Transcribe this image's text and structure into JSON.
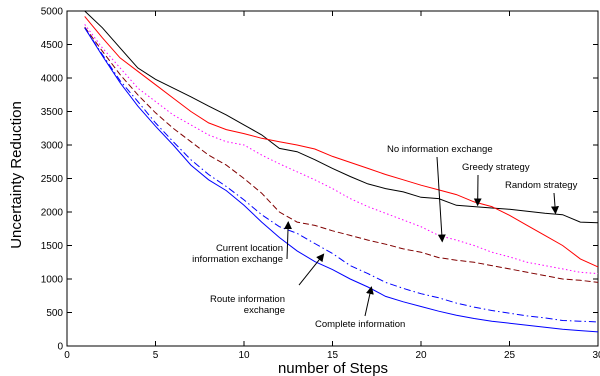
{
  "chart_data": {
    "type": "line",
    "title": "",
    "xlabel": "number of Steps",
    "ylabel": "Uncertainty Reduction",
    "xlim": [
      0,
      30
    ],
    "ylim": [
      0,
      5000
    ],
    "xticks": [
      0,
      5,
      10,
      15,
      20,
      25,
      30
    ],
    "yticks": [
      0,
      500,
      1000,
      1500,
      2000,
      2500,
      3000,
      3500,
      4000,
      4500,
      5000
    ],
    "grid": false,
    "legend": "none",
    "series": [
      {
        "color": "#000000",
        "dash": "solid",
        "points": [
          [
            1,
            5000
          ],
          [
            2,
            4750
          ],
          [
            3,
            4450
          ],
          [
            4,
            4150
          ],
          [
            5,
            3980
          ],
          [
            6,
            3850
          ],
          [
            7,
            3720
          ],
          [
            8,
            3580
          ],
          [
            9,
            3450
          ],
          [
            10,
            3300
          ],
          [
            11,
            3150
          ],
          [
            12,
            2950
          ],
          [
            13,
            2900
          ],
          [
            14,
            2780
          ],
          [
            15,
            2650
          ],
          [
            16,
            2530
          ],
          [
            17,
            2420
          ],
          [
            18,
            2350
          ],
          [
            19,
            2300
          ],
          [
            20,
            2220
          ],
          [
            21,
            2200
          ],
          [
            22,
            2100
          ],
          [
            23,
            2080
          ],
          [
            24,
            2060
          ],
          [
            25,
            2040
          ],
          [
            26,
            2010
          ],
          [
            27,
            1980
          ],
          [
            28,
            1960
          ],
          [
            29,
            1850
          ],
          [
            30,
            1840
          ]
        ]
      },
      {
        "color": "#ff0000",
        "dash": "solid",
        "points": [
          [
            1,
            4920
          ],
          [
            2,
            4600
          ],
          [
            3,
            4300
          ],
          [
            4,
            4100
          ],
          [
            5,
            3900
          ],
          [
            6,
            3700
          ],
          [
            7,
            3500
          ],
          [
            8,
            3330
          ],
          [
            9,
            3230
          ],
          [
            10,
            3170
          ],
          [
            11,
            3100
          ],
          [
            12,
            3050
          ],
          [
            13,
            3000
          ],
          [
            14,
            2940
          ],
          [
            15,
            2830
          ],
          [
            16,
            2740
          ],
          [
            17,
            2650
          ],
          [
            18,
            2560
          ],
          [
            19,
            2480
          ],
          [
            20,
            2400
          ],
          [
            21,
            2330
          ],
          [
            22,
            2260
          ],
          [
            23,
            2150
          ],
          [
            24,
            2080
          ],
          [
            25,
            1950
          ],
          [
            26,
            1800
          ],
          [
            27,
            1650
          ],
          [
            28,
            1500
          ],
          [
            29,
            1300
          ],
          [
            30,
            1180
          ]
        ]
      },
      {
        "color": "#ff00ff",
        "dash": "dot",
        "points": [
          [
            1,
            4800
          ],
          [
            2,
            4450
          ],
          [
            3,
            4150
          ],
          [
            4,
            3850
          ],
          [
            5,
            3650
          ],
          [
            6,
            3450
          ],
          [
            7,
            3300
          ],
          [
            8,
            3150
          ],
          [
            9,
            3050
          ],
          [
            10,
            3000
          ],
          [
            11,
            2850
          ],
          [
            12,
            2720
          ],
          [
            13,
            2600
          ],
          [
            14,
            2480
          ],
          [
            15,
            2350
          ],
          [
            16,
            2200
          ],
          [
            17,
            2080
          ],
          [
            18,
            1980
          ],
          [
            19,
            1880
          ],
          [
            20,
            1780
          ],
          [
            21,
            1650
          ],
          [
            22,
            1580
          ],
          [
            23,
            1500
          ],
          [
            24,
            1400
          ],
          [
            25,
            1330
          ],
          [
            26,
            1250
          ],
          [
            27,
            1200
          ],
          [
            28,
            1150
          ],
          [
            29,
            1100
          ],
          [
            30,
            1080
          ]
        ]
      },
      {
        "color": "#800000",
        "dash": "dash",
        "points": [
          [
            1,
            4760
          ],
          [
            2,
            4400
          ],
          [
            3,
            4050
          ],
          [
            4,
            3750
          ],
          [
            5,
            3480
          ],
          [
            6,
            3250
          ],
          [
            7,
            3050
          ],
          [
            8,
            2850
          ],
          [
            9,
            2700
          ],
          [
            10,
            2500
          ],
          [
            11,
            2280
          ],
          [
            12,
            2000
          ],
          [
            13,
            1850
          ],
          [
            14,
            1800
          ],
          [
            15,
            1720
          ],
          [
            16,
            1650
          ],
          [
            17,
            1580
          ],
          [
            18,
            1520
          ],
          [
            19,
            1450
          ],
          [
            20,
            1400
          ],
          [
            21,
            1320
          ],
          [
            22,
            1280
          ],
          [
            23,
            1250
          ],
          [
            24,
            1200
          ],
          [
            25,
            1150
          ],
          [
            26,
            1100
          ],
          [
            27,
            1050
          ],
          [
            28,
            1000
          ],
          [
            29,
            980
          ],
          [
            30,
            950
          ]
        ]
      },
      {
        "color": "#0000ff",
        "dash": "dashdot",
        "points": [
          [
            1,
            4750
          ],
          [
            2,
            4350
          ],
          [
            3,
            3960
          ],
          [
            4,
            3650
          ],
          [
            5,
            3330
          ],
          [
            6,
            3050
          ],
          [
            7,
            2780
          ],
          [
            8,
            2560
          ],
          [
            9,
            2380
          ],
          [
            10,
            2180
          ],
          [
            11,
            1960
          ],
          [
            12,
            1780
          ],
          [
            13,
            1680
          ],
          [
            14,
            1530
          ],
          [
            15,
            1380
          ],
          [
            16,
            1200
          ],
          [
            17,
            1080
          ],
          [
            18,
            950
          ],
          [
            19,
            860
          ],
          [
            20,
            780
          ],
          [
            21,
            720
          ],
          [
            22,
            640
          ],
          [
            23,
            580
          ],
          [
            24,
            530
          ],
          [
            25,
            490
          ],
          [
            26,
            450
          ],
          [
            27,
            420
          ],
          [
            28,
            380
          ],
          [
            29,
            370
          ],
          [
            30,
            360
          ]
        ]
      },
      {
        "color": "#0000ff",
        "dash": "solid",
        "points": [
          [
            1,
            4750
          ],
          [
            2,
            4330
          ],
          [
            3,
            3930
          ],
          [
            4,
            3580
          ],
          [
            5,
            3280
          ],
          [
            6,
            3000
          ],
          [
            7,
            2700
          ],
          [
            8,
            2480
          ],
          [
            9,
            2320
          ],
          [
            10,
            2100
          ],
          [
            11,
            1850
          ],
          [
            12,
            1620
          ],
          [
            13,
            1420
          ],
          [
            14,
            1260
          ],
          [
            15,
            1140
          ],
          [
            16,
            1000
          ],
          [
            17,
            880
          ],
          [
            18,
            740
          ],
          [
            19,
            660
          ],
          [
            20,
            590
          ],
          [
            21,
            520
          ],
          [
            22,
            460
          ],
          [
            23,
            410
          ],
          [
            24,
            370
          ],
          [
            25,
            340
          ],
          [
            26,
            310
          ],
          [
            27,
            280
          ],
          [
            28,
            250
          ],
          [
            29,
            230
          ],
          [
            30,
            210
          ]
        ]
      }
    ],
    "annotations": [
      {
        "lines": [
          "No information exchange"
        ],
        "xy": [
          21.2,
          1560
        ]
      },
      {
        "lines": [
          "Greedy strategy"
        ],
        "xy": [
          23.2,
          2100
        ]
      },
      {
        "lines": [
          "Random strategy"
        ],
        "xy": [
          27.6,
          1980
        ]
      },
      {
        "lines": [
          "Current location",
          "information exchange"
        ],
        "xy": [
          12.5,
          1850
        ]
      },
      {
        "lines": [
          "Route information",
          "exchange"
        ],
        "xy": [
          14.5,
          1370
        ]
      },
      {
        "lines": [
          "Complete information"
        ],
        "xy": [
          17.2,
          880
        ]
      }
    ]
  }
}
